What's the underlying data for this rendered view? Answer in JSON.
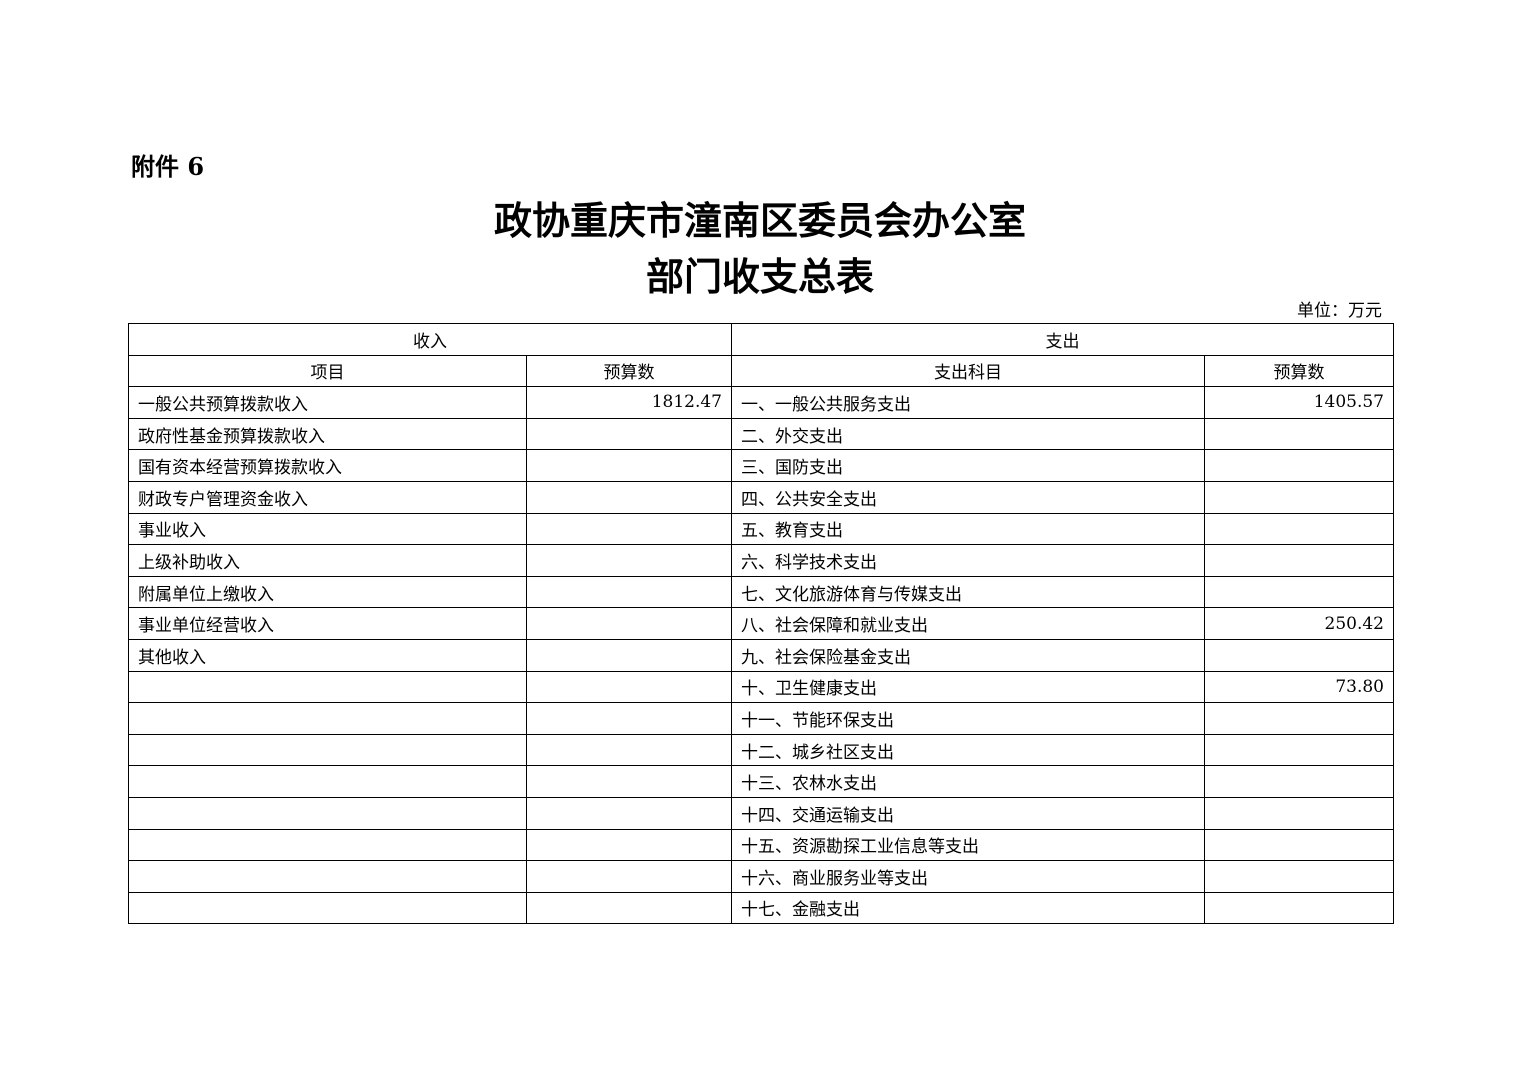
{
  "attachment_label": "附件 6",
  "title_line1": "政协重庆市潼南区委员会办公室",
  "title_line2": "部门收支总表",
  "unit": "单位：万元",
  "table": {
    "income_header": "收入",
    "expense_header": "支出",
    "col_item": "项目",
    "col_budget": "预算数",
    "col_expense_item": "支出科目",
    "col_expense_budget": "预算数",
    "rows": [
      {
        "income_item": "一般公共预算拨款收入",
        "income_amount": "1812.47",
        "expense_item": "一、一般公共服务支出",
        "expense_amount": "1405.57"
      },
      {
        "income_item": "政府性基金预算拨款收入",
        "income_amount": "",
        "expense_item": "二、外交支出",
        "expense_amount": ""
      },
      {
        "income_item": "国有资本经营预算拨款收入",
        "income_amount": "",
        "expense_item": "三、国防支出",
        "expense_amount": ""
      },
      {
        "income_item": "财政专户管理资金收入",
        "income_amount": "",
        "expense_item": "四、公共安全支出",
        "expense_amount": ""
      },
      {
        "income_item": "事业收入",
        "income_amount": "",
        "expense_item": "五、教育支出",
        "expense_amount": ""
      },
      {
        "income_item": "上级补助收入",
        "income_amount": "",
        "expense_item": "六、科学技术支出",
        "expense_amount": ""
      },
      {
        "income_item": "附属单位上缴收入",
        "income_amount": "",
        "expense_item": "七、文化旅游体育与传媒支出",
        "expense_amount": ""
      },
      {
        "income_item": "事业单位经营收入",
        "income_amount": "",
        "expense_item": "八、社会保障和就业支出",
        "expense_amount": "250.42"
      },
      {
        "income_item": "其他收入",
        "income_amount": "",
        "expense_item": "九、社会保险基金支出",
        "expense_amount": ""
      },
      {
        "income_item": "",
        "income_amount": "",
        "expense_item": "十、卫生健康支出",
        "expense_amount": "73.80"
      },
      {
        "income_item": "",
        "income_amount": "",
        "expense_item": "十一、节能环保支出",
        "expense_amount": ""
      },
      {
        "income_item": "",
        "income_amount": "",
        "expense_item": "十二、城乡社区支出",
        "expense_amount": ""
      },
      {
        "income_item": "",
        "income_amount": "",
        "expense_item": "十三、农林水支出",
        "expense_amount": ""
      },
      {
        "income_item": "",
        "income_amount": "",
        "expense_item": "十四、交通运输支出",
        "expense_amount": ""
      },
      {
        "income_item": "",
        "income_amount": "",
        "expense_item": "十五、资源勘探工业信息等支出",
        "expense_amount": ""
      },
      {
        "income_item": "",
        "income_amount": "",
        "expense_item": "十六、商业服务业等支出",
        "expense_amount": ""
      },
      {
        "income_item": "",
        "income_amount": "",
        "expense_item": "十七、金融支出",
        "expense_amount": ""
      }
    ]
  }
}
